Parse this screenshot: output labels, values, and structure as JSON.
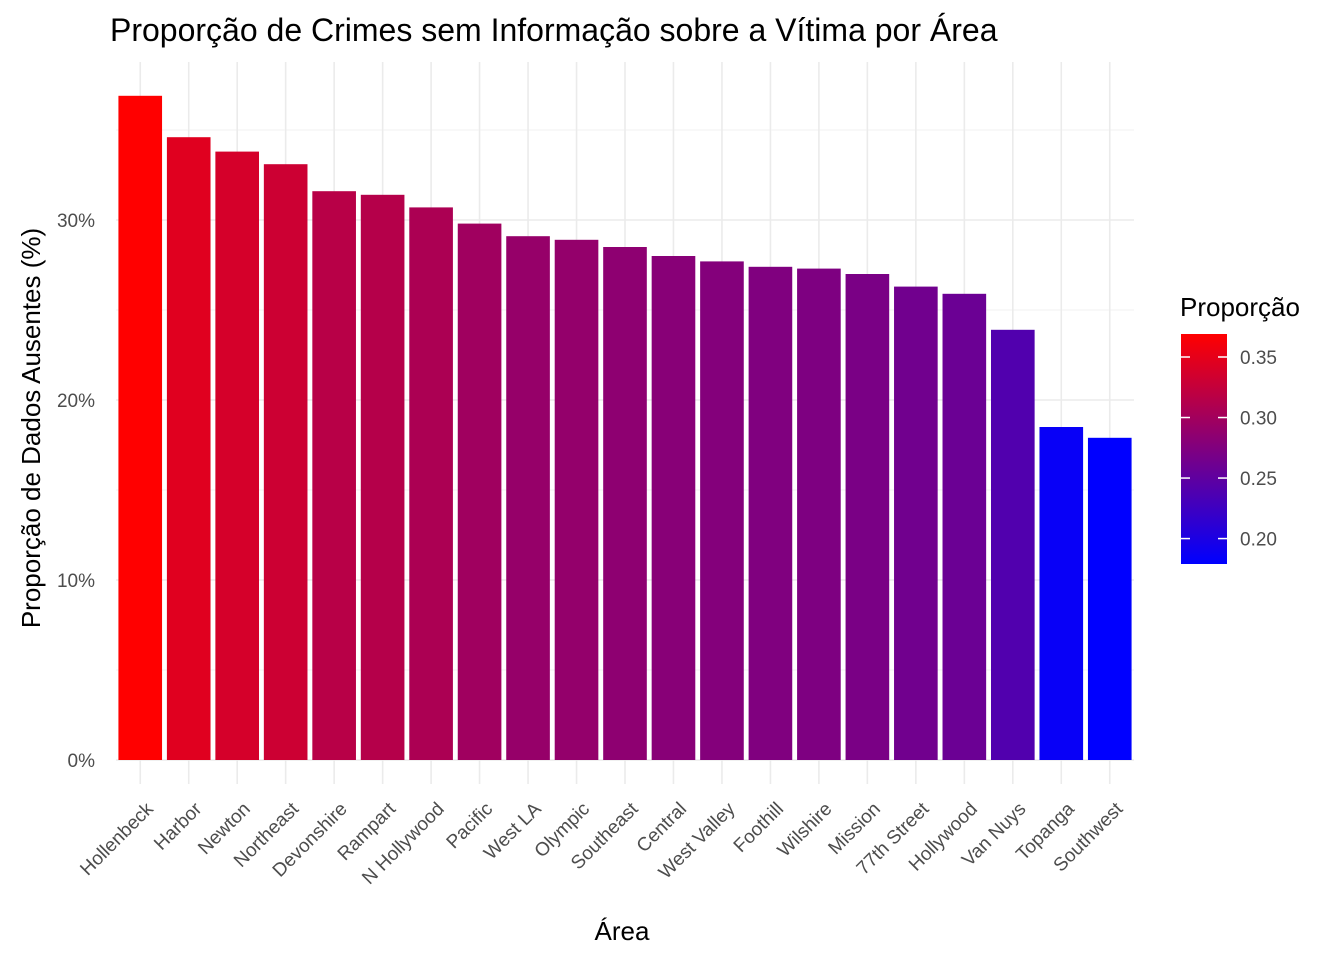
{
  "chart_data": {
    "type": "bar",
    "title": "Proporção de Crimes sem Informação sobre a Vítima por Área",
    "xlabel": "Área",
    "ylabel": "Proporção de Dados Ausentes (%)",
    "categories": [
      "Hollenbeck",
      "Harbor",
      "Newton",
      "Northeast",
      "Devonshire",
      "Rampart",
      "N Hollywood",
      "Pacific",
      "West LA",
      "Olympic",
      "Southeast",
      "Central",
      "West Valley",
      "Foothill",
      "Wilshire",
      "Mission",
      "77th Street",
      "Hollywood",
      "Van Nuys",
      "Topanga",
      "Southwest"
    ],
    "values": [
      0.369,
      0.346,
      0.338,
      0.331,
      0.316,
      0.314,
      0.307,
      0.298,
      0.291,
      0.289,
      0.285,
      0.28,
      0.277,
      0.274,
      0.273,
      0.27,
      0.263,
      0.259,
      0.239,
      0.185,
      0.179
    ],
    "ylim": [
      0,
      0.37
    ],
    "yticks": [
      0,
      0.1,
      0.2,
      0.3
    ],
    "ytick_labels": [
      "0%",
      "10%",
      "20%",
      "30%"
    ],
    "grid": true,
    "legend": {
      "title": "Proporção",
      "placement": "right",
      "range": [
        0.179,
        0.369
      ],
      "ticks": [
        0.2,
        0.25,
        0.3,
        0.35
      ],
      "tick_labels": [
        "0.20",
        "0.25",
        "0.30",
        "0.35"
      ],
      "color_low": "#0000FF",
      "color_high": "#FF0000"
    }
  }
}
